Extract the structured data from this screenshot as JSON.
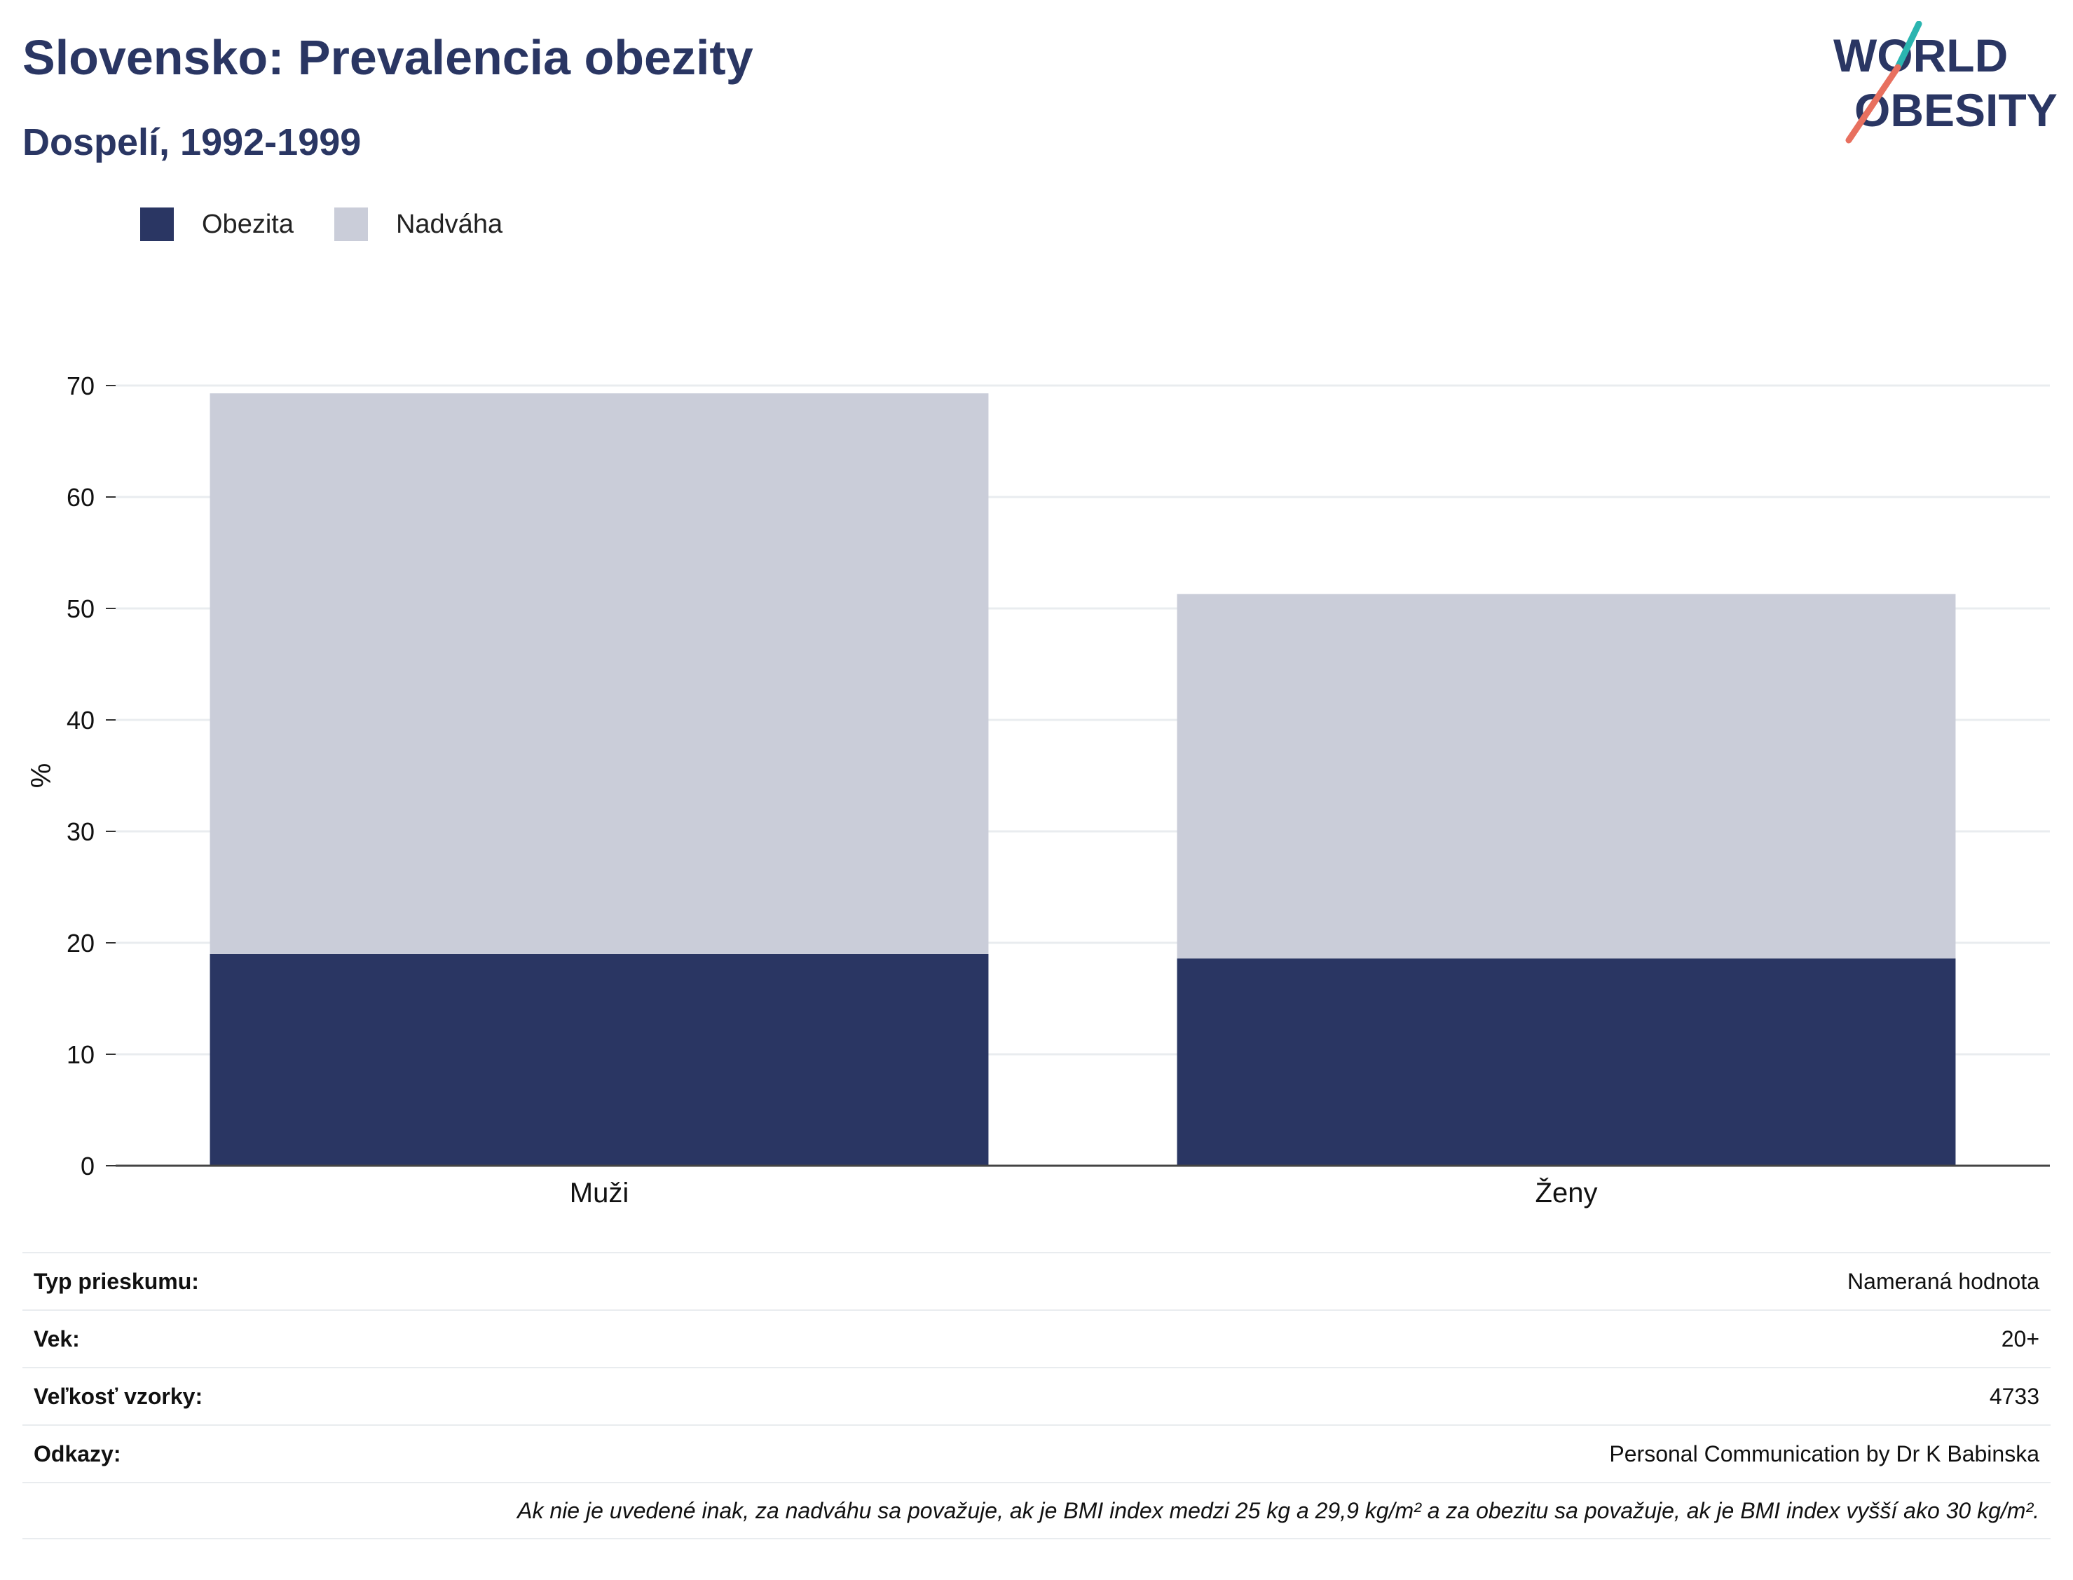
{
  "header": {
    "title": "Slovensko: Prevalencia obezity",
    "subtitle": "Dospelí, 1992-1999"
  },
  "logo": {
    "line1": "WORLD",
    "line2": "OBESITY"
  },
  "colors": {
    "obesity": "#2a3663",
    "overweight": "#cacdd9",
    "text": "#2a3663",
    "accent_teal": "#2bb5b0",
    "accent_coral": "#e8705f"
  },
  "chart_data": {
    "type": "bar",
    "stacked": true,
    "categories": [
      "Muži",
      "Ženy"
    ],
    "series": [
      {
        "name": "Obezita",
        "values": [
          19.0,
          18.6
        ]
      },
      {
        "name": "Nadváha",
        "values": [
          50.3,
          32.7
        ]
      }
    ],
    "ylabel": "%",
    "ylim": [
      0,
      70
    ],
    "yticks": [
      0,
      10,
      20,
      30,
      40,
      50,
      60,
      70
    ],
    "grid": true,
    "legend": "top-left"
  },
  "meta": {
    "rows": [
      {
        "label": "Typ prieskumu:",
        "value": "Nameraná hodnota"
      },
      {
        "label": "Vek:",
        "value": "20+"
      },
      {
        "label": "Veľkosť vzorky:",
        "value": "4733"
      },
      {
        "label": "Odkazy:",
        "value": "Personal Communication by Dr K Babinska"
      }
    ],
    "note": "Ak nie je uvedené inak, za nadváhu sa považuje, ak je BMI index medzi 25 kg a 29,9 kg/m² a za obezitu sa považuje, ak je BMI index vyšší ako 30 kg/m²."
  }
}
